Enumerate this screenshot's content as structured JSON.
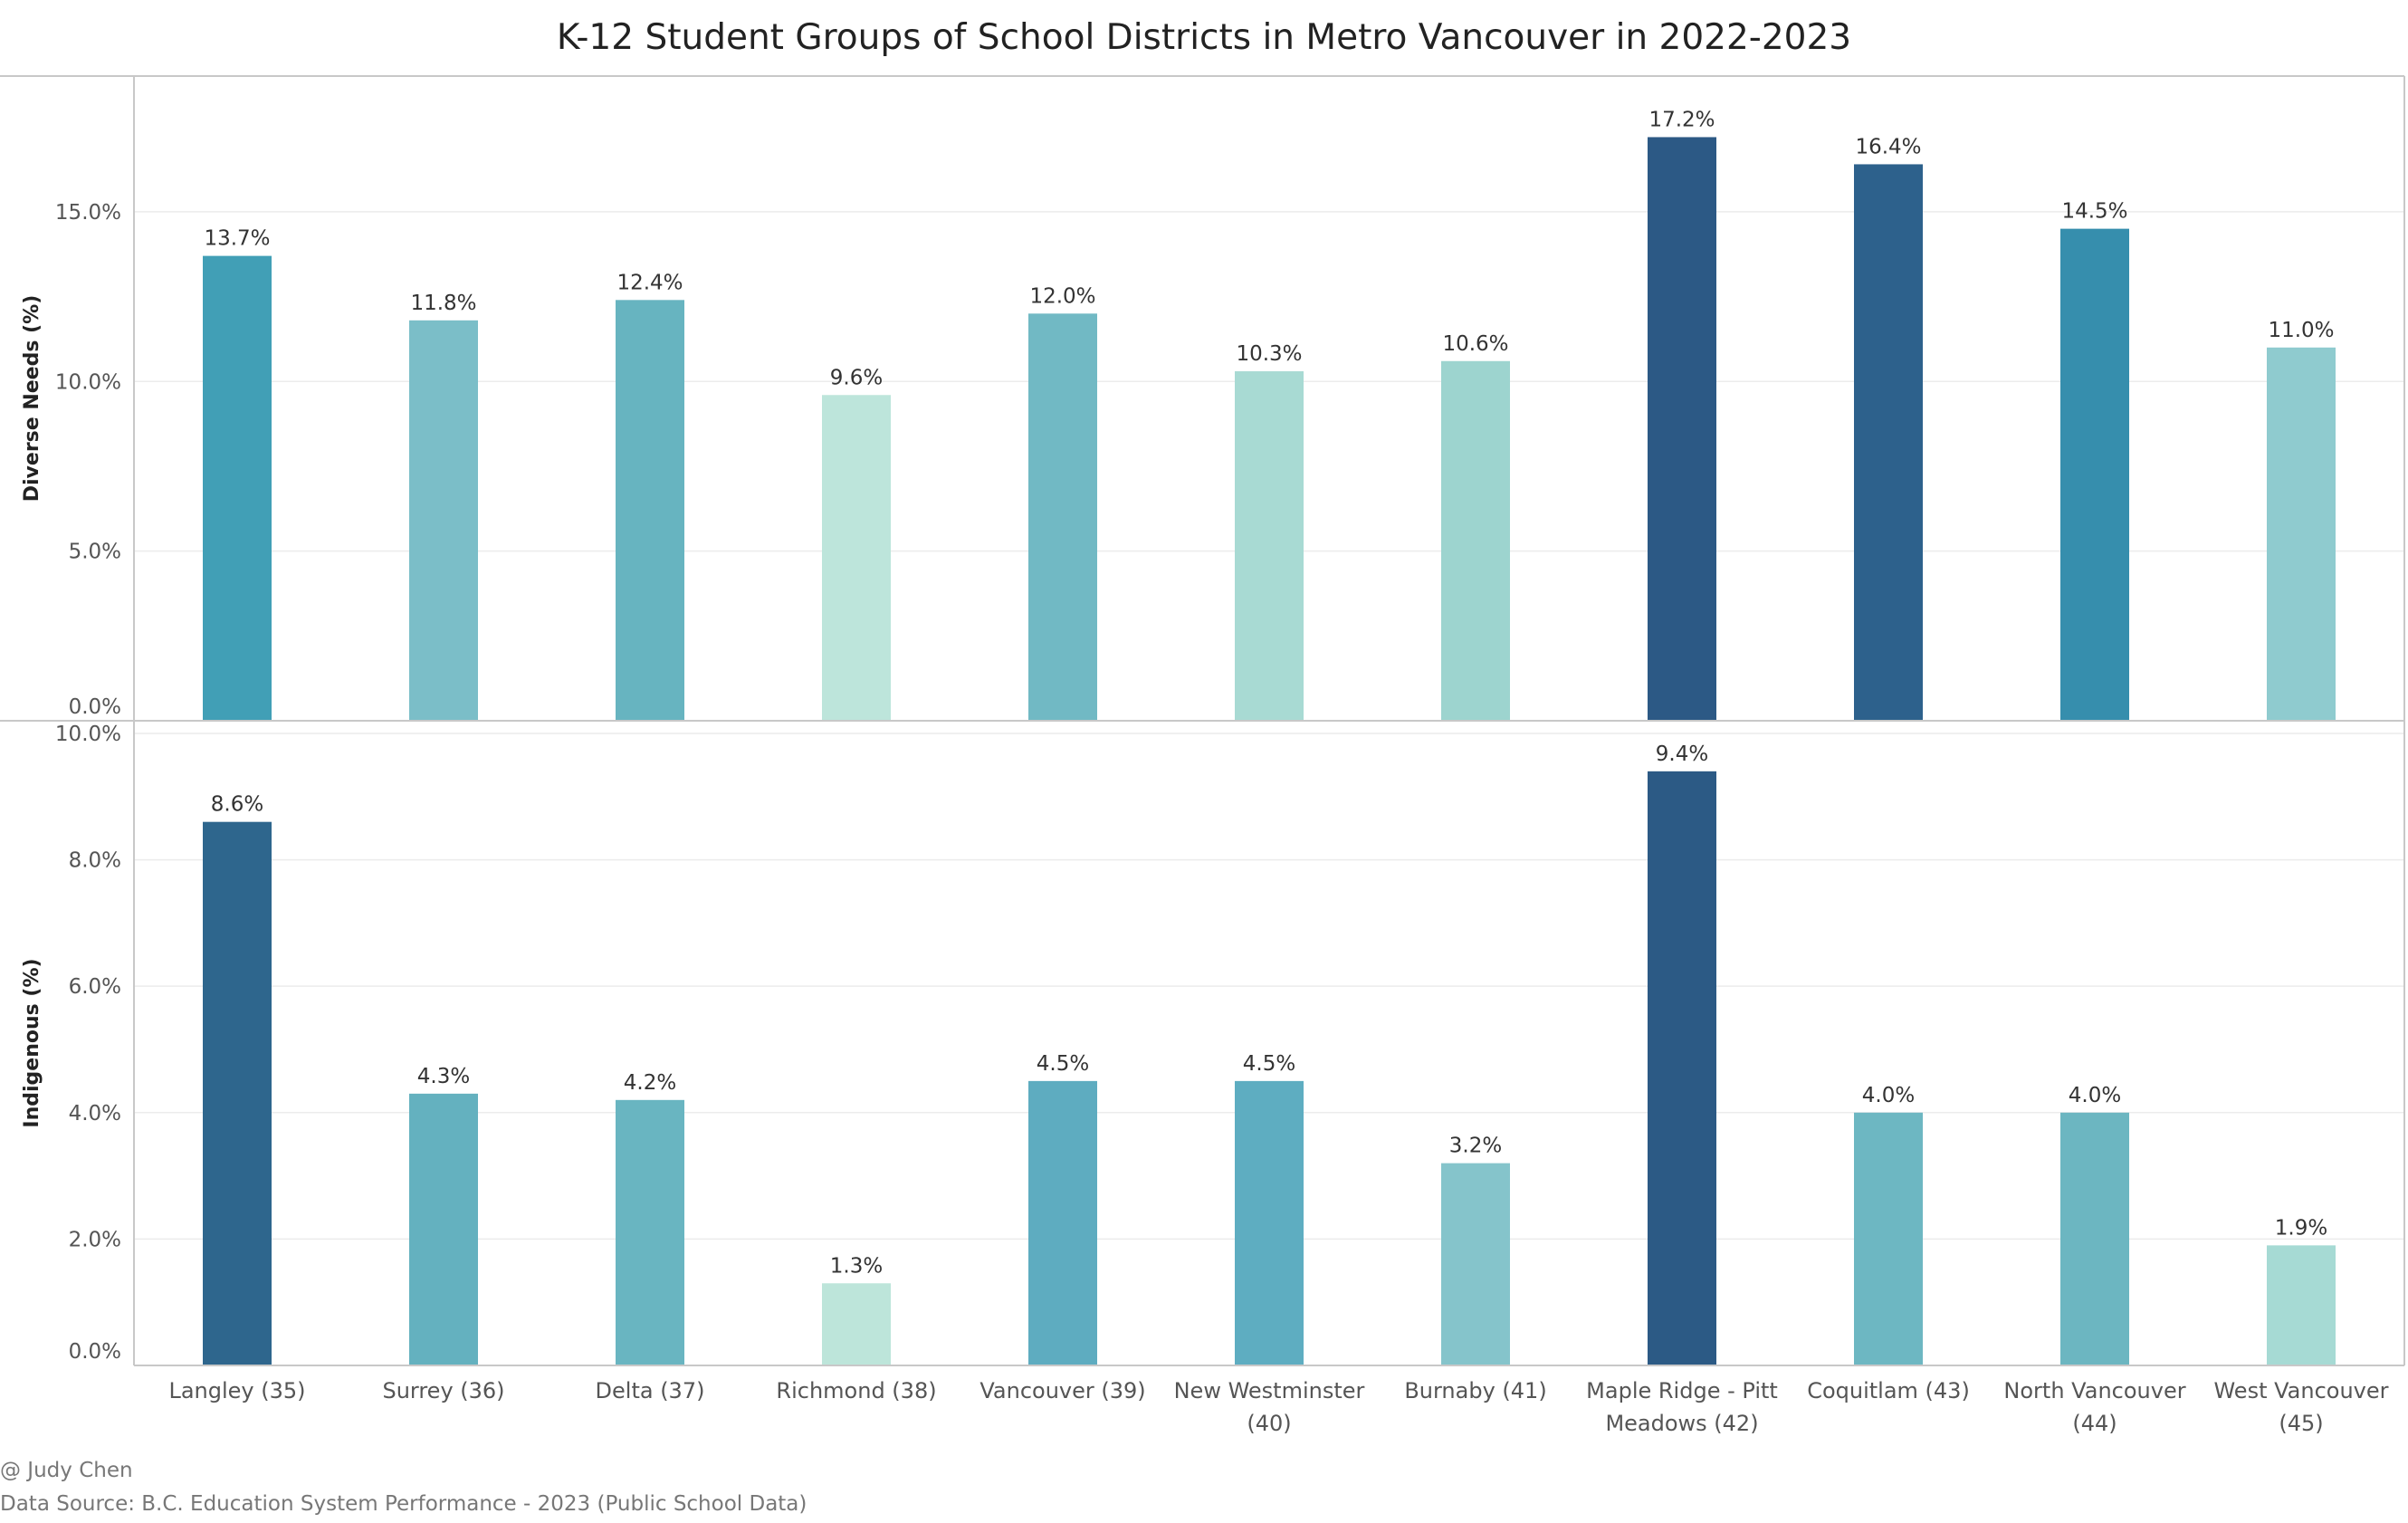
{
  "chart_data": {
    "type": "bar",
    "title": "K-12 Student Groups of School Districts in Metro Vancouver in 2022-2023",
    "categories": [
      [
        "Langley (35)"
      ],
      [
        "Surrey (36)"
      ],
      [
        "Delta (37)"
      ],
      [
        "Richmond (38)"
      ],
      [
        "Vancouver (39)"
      ],
      [
        "New Westminster",
        "(40)"
      ],
      [
        "Burnaby (41)"
      ],
      [
        "Maple Ridge - Pitt",
        "Meadows (42)"
      ],
      [
        "Coquitlam (43)"
      ],
      [
        "North Vancouver",
        "(44)"
      ],
      [
        "West Vancouver",
        "(45)"
      ]
    ],
    "panels": [
      {
        "ylabel": "Diverse Needs (%)",
        "ylim": [
          0,
          19
        ],
        "yticks": [
          0,
          5,
          10,
          15
        ],
        "ytick_labels": [
          "0.0%",
          "5.0%",
          "10.0%",
          "15.0%"
        ],
        "values": [
          13.7,
          11.8,
          12.4,
          9.6,
          12.0,
          10.3,
          10.6,
          17.2,
          16.4,
          14.5,
          11.0
        ],
        "labels": [
          "13.7%",
          "11.8%",
          "12.4%",
          "9.6%",
          "12.0%",
          "10.3%",
          "10.6%",
          "17.2%",
          "16.4%",
          "14.5%",
          "11.0%"
        ],
        "colors": [
          "#419fb6",
          "#7bbec8",
          "#67b4c0",
          "#bde5db",
          "#71b9c4",
          "#a8dad3",
          "#9dd4cf",
          "#2c5985",
          "#2d618c",
          "#368ead",
          "#8fcbcf"
        ]
      },
      {
        "ylabel": "Indigenous (%)",
        "ylim": [
          0,
          10.2
        ],
        "yticks": [
          0,
          2,
          4,
          6,
          8,
          10
        ],
        "ytick_labels": [
          "0.0%",
          "2.0%",
          "4.0%",
          "6.0%",
          "8.0%",
          "10.0%"
        ],
        "values": [
          8.6,
          4.3,
          4.2,
          1.3,
          4.5,
          4.5,
          3.2,
          9.4,
          4.0,
          4.0,
          1.9
        ],
        "labels": [
          "8.6%",
          "4.3%",
          "4.2%",
          "1.3%",
          "4.5%",
          "4.5%",
          "3.2%",
          "9.4%",
          "4.0%",
          "4.0%",
          "1.9%"
        ],
        "colors": [
          "#2e668d",
          "#64b1bf",
          "#69b5c1",
          "#bde5da",
          "#5eacc0",
          "#5eadc1",
          "#85c4cb",
          "#2c5a85",
          "#6db7c2",
          "#6cb6c1",
          "#a6dad4"
        ]
      }
    ],
    "grid": true,
    "footer": {
      "credit": "@ Judy Chen",
      "source": "Data Source: B.C. Education System Performance - 2023 (Public School Data)"
    }
  }
}
